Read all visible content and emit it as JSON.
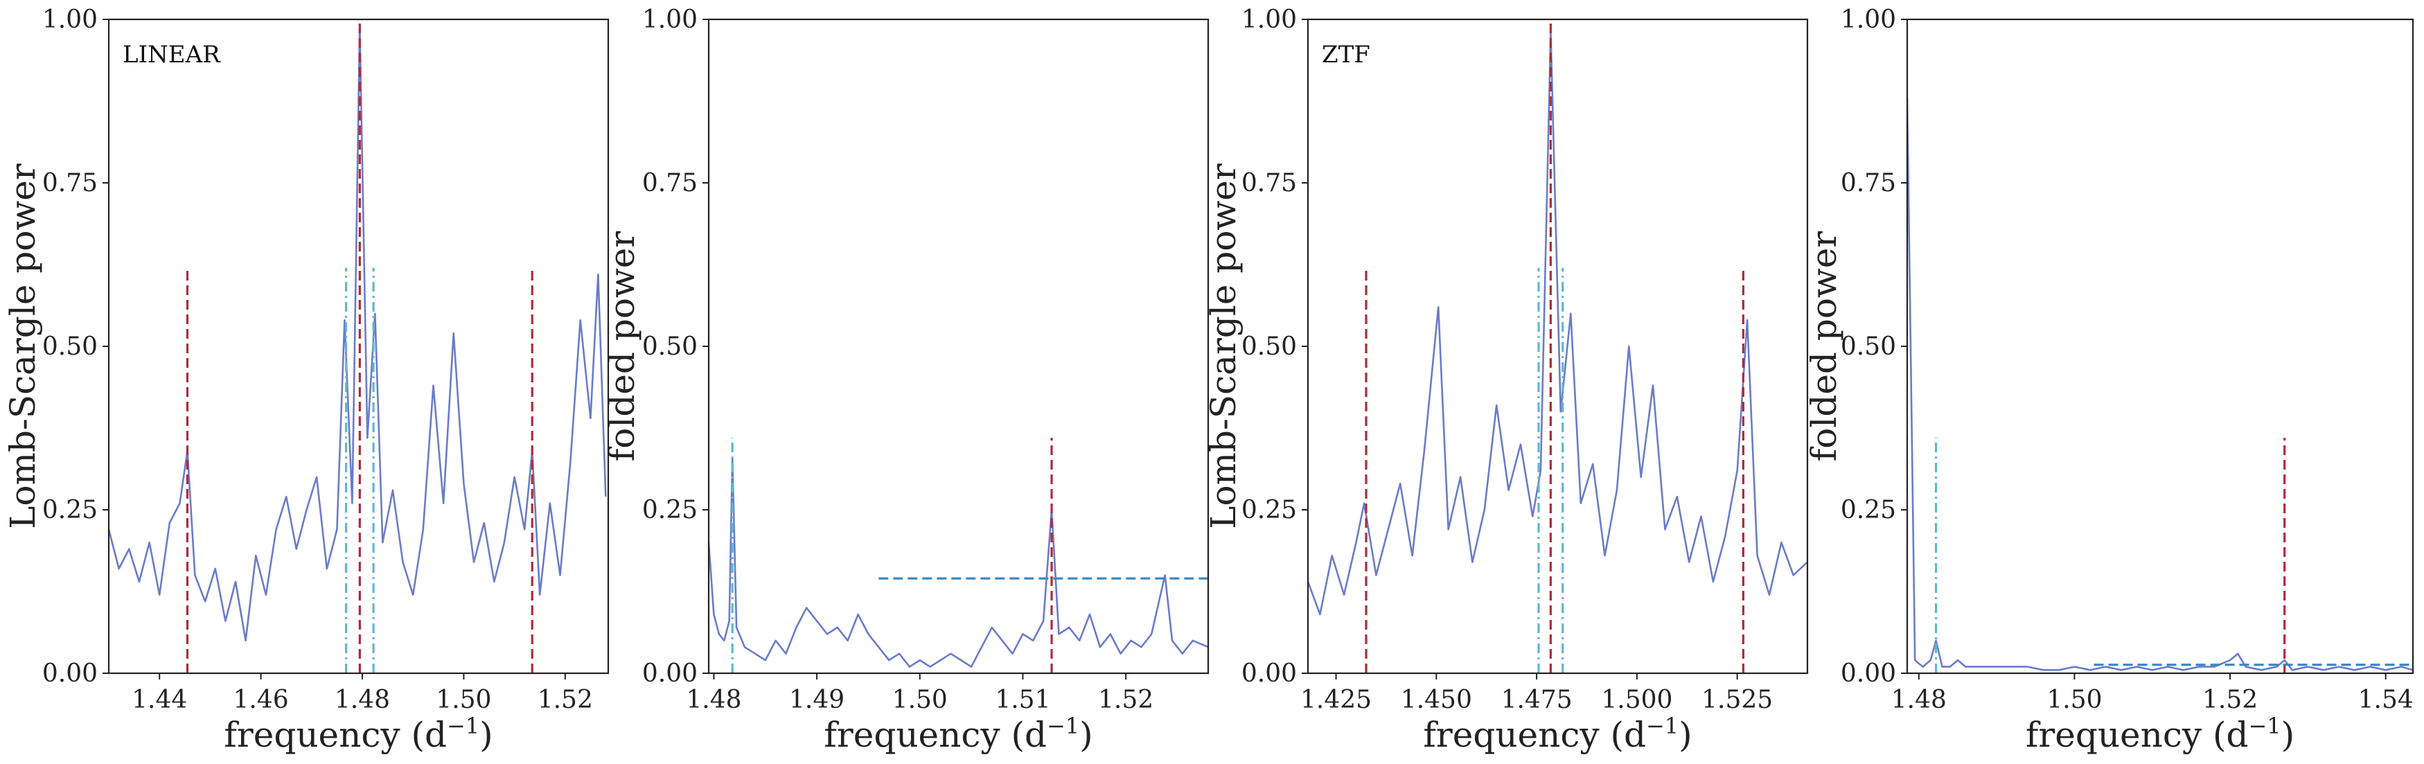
{
  "chart_data": [
    {
      "type": "line",
      "panel_label": "LINEAR",
      "xlabel": "frequency (d",
      "xlabel_sup": "−1",
      "xlabel_close": ")",
      "ylabel": "Lomb-Scargle power",
      "xlim": [
        1.43,
        1.5285
      ],
      "ylim": [
        0,
        1
      ],
      "xticks": [
        1.44,
        1.46,
        1.48,
        1.5,
        1.52
      ],
      "xtick_labels": [
        "1.44",
        "1.46",
        "1.48",
        "1.50",
        "1.52"
      ],
      "yticks": [
        0,
        0.25,
        0.5,
        0.75,
        1.0
      ],
      "ytick_labels": [
        "0.00",
        "0.25",
        "0.50",
        "0.75",
        "1.00"
      ],
      "series_color": "#6a7cc8",
      "series_points": [
        [
          1.43,
          0.22
        ],
        [
          1.432,
          0.16
        ],
        [
          1.434,
          0.19
        ],
        [
          1.436,
          0.14
        ],
        [
          1.438,
          0.2
        ],
        [
          1.44,
          0.12
        ],
        [
          1.442,
          0.23
        ],
        [
          1.444,
          0.26
        ],
        [
          1.4455,
          0.34
        ],
        [
          1.447,
          0.15
        ],
        [
          1.449,
          0.11
        ],
        [
          1.451,
          0.16
        ],
        [
          1.453,
          0.08
        ],
        [
          1.455,
          0.14
        ],
        [
          1.457,
          0.05
        ],
        [
          1.459,
          0.18
        ],
        [
          1.461,
          0.12
        ],
        [
          1.463,
          0.22
        ],
        [
          1.465,
          0.27
        ],
        [
          1.467,
          0.19
        ],
        [
          1.469,
          0.25
        ],
        [
          1.471,
          0.3
        ],
        [
          1.473,
          0.16
        ],
        [
          1.475,
          0.22
        ],
        [
          1.4765,
          0.54
        ],
        [
          1.478,
          0.26
        ],
        [
          1.4795,
          0.99
        ],
        [
          1.481,
          0.36
        ],
        [
          1.4825,
          0.55
        ],
        [
          1.484,
          0.2
        ],
        [
          1.486,
          0.28
        ],
        [
          1.488,
          0.17
        ],
        [
          1.49,
          0.12
        ],
        [
          1.492,
          0.22
        ],
        [
          1.494,
          0.44
        ],
        [
          1.496,
          0.26
        ],
        [
          1.498,
          0.52
        ],
        [
          1.5,
          0.29
        ],
        [
          1.502,
          0.17
        ],
        [
          1.504,
          0.23
        ],
        [
          1.506,
          0.14
        ],
        [
          1.508,
          0.2
        ],
        [
          1.51,
          0.3
        ],
        [
          1.512,
          0.22
        ],
        [
          1.5135,
          0.34
        ],
        [
          1.515,
          0.12
        ],
        [
          1.517,
          0.26
        ],
        [
          1.519,
          0.15
        ],
        [
          1.521,
          0.32
        ],
        [
          1.523,
          0.54
        ],
        [
          1.525,
          0.39
        ],
        [
          1.5265,
          0.61
        ],
        [
          1.528,
          0.27
        ]
      ],
      "vlines": [
        {
          "x": 1.4455,
          "ymax": 0.62,
          "style": "dashed",
          "color": "#b02a3a"
        },
        {
          "x": 1.4795,
          "ymax": 1.0,
          "style": "dashed",
          "color": "#b02a3a"
        },
        {
          "x": 1.5135,
          "ymax": 0.62,
          "style": "dashed",
          "color": "#b02a3a"
        },
        {
          "x": 1.4768,
          "ymax": 0.62,
          "style": "dashdot",
          "color": "#5fb8d0"
        },
        {
          "x": 1.4822,
          "ymax": 0.62,
          "style": "dashdot",
          "color": "#5fb8d0"
        }
      ],
      "hlines": []
    },
    {
      "type": "line",
      "panel_label": "",
      "xlabel": "frequency (d",
      "xlabel_sup": "−1",
      "xlabel_close": ")",
      "ylabel": "folded power",
      "xlim": [
        1.4795,
        1.528
      ],
      "ylim": [
        0,
        1
      ],
      "xticks": [
        1.48,
        1.49,
        1.5,
        1.51,
        1.52
      ],
      "xtick_labels": [
        "1.48",
        "1.49",
        "1.50",
        "1.51",
        "1.52"
      ],
      "yticks": [
        0,
        0.25,
        0.5,
        0.75,
        1.0
      ],
      "ytick_labels": [
        "0.00",
        "0.25",
        "0.50",
        "0.75",
        "1.00"
      ],
      "series_color": "#6a7cc8",
      "series_points": [
        [
          1.4795,
          0.2
        ],
        [
          1.48,
          0.09
        ],
        [
          1.4805,
          0.06
        ],
        [
          1.481,
          0.05
        ],
        [
          1.4815,
          0.08
        ],
        [
          1.4818,
          0.33
        ],
        [
          1.4822,
          0.07
        ],
        [
          1.483,
          0.04
        ],
        [
          1.484,
          0.03
        ],
        [
          1.485,
          0.02
        ],
        [
          1.486,
          0.05
        ],
        [
          1.487,
          0.03
        ],
        [
          1.488,
          0.07
        ],
        [
          1.489,
          0.1
        ],
        [
          1.49,
          0.08
        ],
        [
          1.491,
          0.06
        ],
        [
          1.492,
          0.07
        ],
        [
          1.493,
          0.05
        ],
        [
          1.494,
          0.09
        ],
        [
          1.495,
          0.06
        ],
        [
          1.496,
          0.04
        ],
        [
          1.497,
          0.02
        ],
        [
          1.498,
          0.03
        ],
        [
          1.499,
          0.01
        ],
        [
          1.5,
          0.02
        ],
        [
          1.501,
          0.01
        ],
        [
          1.502,
          0.02
        ],
        [
          1.503,
          0.03
        ],
        [
          1.504,
          0.02
        ],
        [
          1.505,
          0.01
        ],
        [
          1.506,
          0.04
        ],
        [
          1.507,
          0.07
        ],
        [
          1.508,
          0.05
        ],
        [
          1.509,
          0.03
        ],
        [
          1.51,
          0.06
        ],
        [
          1.511,
          0.05
        ],
        [
          1.512,
          0.08
        ],
        [
          1.5128,
          0.25
        ],
        [
          1.5135,
          0.06
        ],
        [
          1.5145,
          0.07
        ],
        [
          1.5155,
          0.05
        ],
        [
          1.5165,
          0.09
        ],
        [
          1.5175,
          0.04
        ],
        [
          1.5185,
          0.06
        ],
        [
          1.5195,
          0.03
        ],
        [
          1.5205,
          0.05
        ],
        [
          1.5215,
          0.04
        ],
        [
          1.5225,
          0.06
        ],
        [
          1.5238,
          0.15
        ],
        [
          1.5245,
          0.05
        ],
        [
          1.5255,
          0.03
        ],
        [
          1.5265,
          0.05
        ],
        [
          1.528,
          0.04
        ]
      ],
      "vlines": [
        {
          "x": 1.4818,
          "ymax": 0.36,
          "style": "dashdot",
          "color": "#5fb8d0"
        },
        {
          "x": 1.5128,
          "ymax": 0.36,
          "style": "dashed",
          "color": "#b02a3a"
        }
      ],
      "hlines": [
        {
          "y": 0.145,
          "xmin": 1.496,
          "xmax": 1.528,
          "style": "dashed",
          "color": "#3a88c4"
        }
      ]
    },
    {
      "type": "line",
      "panel_label": "ZTF",
      "xlabel": "frequency (d",
      "xlabel_sup": "−1",
      "xlabel_close": ")",
      "ylabel": "Lomb-Scargle power",
      "xlim": [
        1.418,
        1.5425
      ],
      "ylim": [
        0,
        1
      ],
      "xticks": [
        1.425,
        1.45,
        1.475,
        1.5,
        1.525
      ],
      "xtick_labels": [
        "1.425",
        "1.450",
        "1.475",
        "1.500",
        "1.525"
      ],
      "yticks": [
        0,
        0.25,
        0.5,
        0.75,
        1.0
      ],
      "ytick_labels": [
        "0.00",
        "0.25",
        "0.50",
        "0.75",
        "1.00"
      ],
      "series_color": "#6a7cc8",
      "series_points": [
        [
          1.418,
          0.14
        ],
        [
          1.421,
          0.09
        ],
        [
          1.424,
          0.18
        ],
        [
          1.427,
          0.12
        ],
        [
          1.43,
          0.2
        ],
        [
          1.432,
          0.26
        ],
        [
          1.435,
          0.15
        ],
        [
          1.438,
          0.22
        ],
        [
          1.441,
          0.29
        ],
        [
          1.444,
          0.18
        ],
        [
          1.447,
          0.34
        ],
        [
          1.4505,
          0.56
        ],
        [
          1.453,
          0.22
        ],
        [
          1.456,
          0.3
        ],
        [
          1.459,
          0.17
        ],
        [
          1.462,
          0.25
        ],
        [
          1.465,
          0.41
        ],
        [
          1.468,
          0.28
        ],
        [
          1.471,
          0.35
        ],
        [
          1.474,
          0.24
        ],
        [
          1.476,
          0.31
        ],
        [
          1.4785,
          0.98
        ],
        [
          1.481,
          0.4
        ],
        [
          1.4835,
          0.55
        ],
        [
          1.486,
          0.26
        ],
        [
          1.489,
          0.32
        ],
        [
          1.492,
          0.18
        ],
        [
          1.495,
          0.28
        ],
        [
          1.498,
          0.5
        ],
        [
          1.501,
          0.3
        ],
        [
          1.504,
          0.44
        ],
        [
          1.507,
          0.22
        ],
        [
          1.51,
          0.27
        ],
        [
          1.513,
          0.17
        ],
        [
          1.516,
          0.24
        ],
        [
          1.519,
          0.14
        ],
        [
          1.522,
          0.21
        ],
        [
          1.525,
          0.31
        ],
        [
          1.5275,
          0.54
        ],
        [
          1.53,
          0.18
        ],
        [
          1.533,
          0.12
        ],
        [
          1.536,
          0.2
        ],
        [
          1.539,
          0.15
        ],
        [
          1.5425,
          0.17
        ]
      ],
      "vlines": [
        {
          "x": 1.4325,
          "ymax": 0.62,
          "style": "dashed",
          "color": "#b02a3a"
        },
        {
          "x": 1.4785,
          "ymax": 1.0,
          "style": "dashed",
          "color": "#b02a3a"
        },
        {
          "x": 1.5265,
          "ymax": 0.62,
          "style": "dashed",
          "color": "#b02a3a"
        },
        {
          "x": 1.4755,
          "ymax": 0.62,
          "style": "dashdot",
          "color": "#5fb8d0"
        },
        {
          "x": 1.4815,
          "ymax": 0.62,
          "style": "dashdot",
          "color": "#5fb8d0"
        }
      ],
      "hlines": []
    },
    {
      "type": "line",
      "panel_label": "",
      "xlabel": "frequency (d",
      "xlabel_sup": "−1",
      "xlabel_close": ")",
      "ylabel": "folded power",
      "xlim": [
        1.4785,
        1.5435
      ],
      "ylim": [
        0,
        1
      ],
      "xticks": [
        1.48,
        1.5,
        1.52,
        1.54
      ],
      "xtick_labels": [
        "1.48",
        "1.50",
        "1.52",
        "1.54"
      ],
      "yticks": [
        0,
        0.25,
        0.5,
        0.75,
        1.0
      ],
      "ytick_labels": [
        "0.00",
        "0.25",
        "0.50",
        "0.75",
        "1.00"
      ],
      "series_color": "#6a7cc8",
      "series_points": [
        [
          1.4785,
          0.88
        ],
        [
          1.4795,
          0.02
        ],
        [
          1.4805,
          0.01
        ],
        [
          1.4815,
          0.02
        ],
        [
          1.4822,
          0.05
        ],
        [
          1.483,
          0.01
        ],
        [
          1.484,
          0.01
        ],
        [
          1.485,
          0.02
        ],
        [
          1.486,
          0.01
        ],
        [
          1.488,
          0.01
        ],
        [
          1.49,
          0.01
        ],
        [
          1.492,
          0.01
        ],
        [
          1.494,
          0.01
        ],
        [
          1.496,
          0.005
        ],
        [
          1.498,
          0.005
        ],
        [
          1.5,
          0.01
        ],
        [
          1.502,
          0.005
        ],
        [
          1.504,
          0.01
        ],
        [
          1.506,
          0.005
        ],
        [
          1.508,
          0.01
        ],
        [
          1.51,
          0.005
        ],
        [
          1.512,
          0.01
        ],
        [
          1.514,
          0.005
        ],
        [
          1.516,
          0.01
        ],
        [
          1.518,
          0.01
        ],
        [
          1.52,
          0.02
        ],
        [
          1.521,
          0.03
        ],
        [
          1.522,
          0.01
        ],
        [
          1.524,
          0.005
        ],
        [
          1.526,
          0.01
        ],
        [
          1.527,
          0.02
        ],
        [
          1.528,
          0.005
        ],
        [
          1.53,
          0.01
        ],
        [
          1.532,
          0.005
        ],
        [
          1.534,
          0.01
        ],
        [
          1.536,
          0.005
        ],
        [
          1.538,
          0.01
        ],
        [
          1.54,
          0.005
        ],
        [
          1.542,
          0.01
        ],
        [
          1.5435,
          0.005
        ]
      ],
      "vlines": [
        {
          "x": 1.4822,
          "ymax": 0.36,
          "style": "dashdot",
          "color": "#5fb8d0"
        },
        {
          "x": 1.527,
          "ymax": 0.36,
          "style": "dashed",
          "color": "#b02a3a"
        }
      ],
      "hlines": [
        {
          "y": 0.013,
          "xmin": 1.5025,
          "xmax": 1.5435,
          "style": "dashed",
          "color": "#3a88c4"
        }
      ]
    }
  ]
}
